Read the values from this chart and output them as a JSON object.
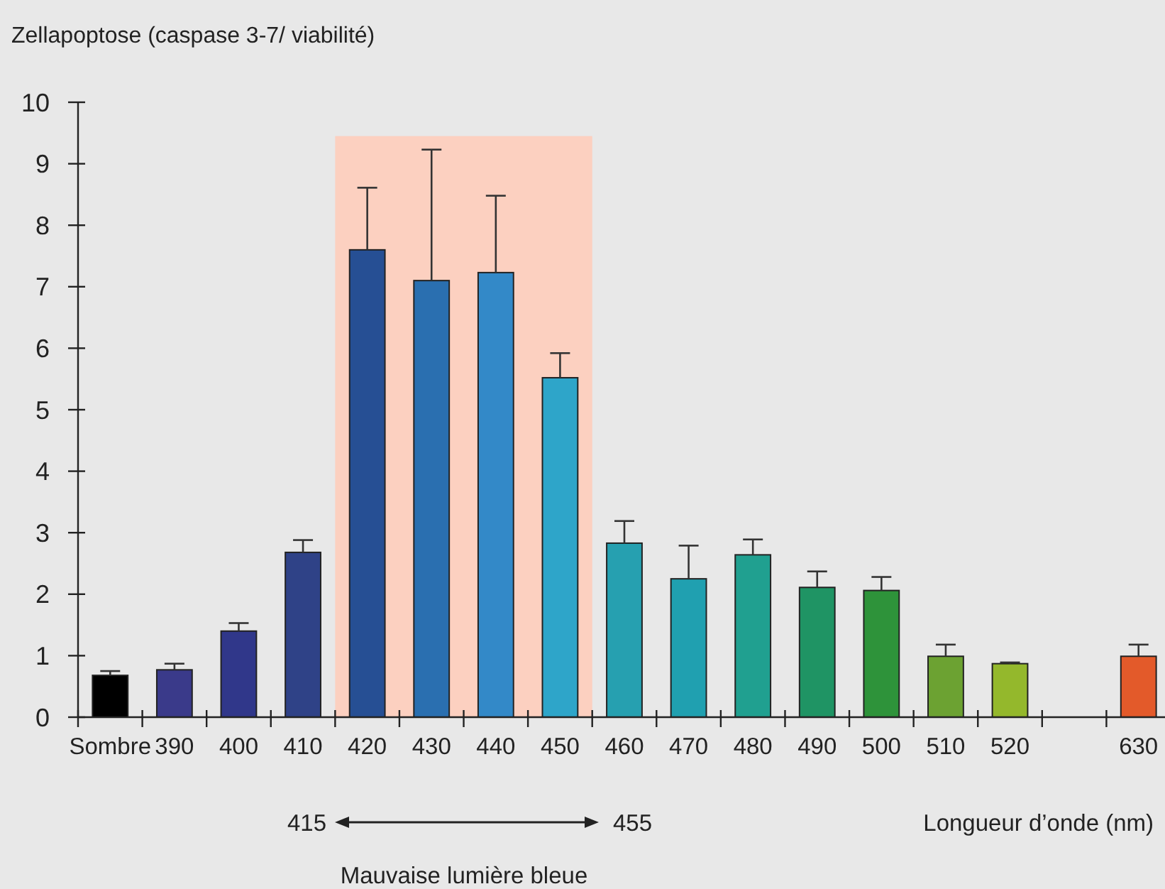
{
  "chart_data": {
    "type": "bar",
    "ylabel": "Zellapoptose (caspase 3-7/ viabilité)",
    "xlabel": "Longueur d’onde (nm)",
    "categories": [
      "Sombre",
      "390",
      "400",
      "410",
      "420",
      "430",
      "440",
      "450",
      "460",
      "470",
      "480",
      "490",
      "500",
      "510",
      "520",
      null,
      "630"
    ],
    "values": [
      0.68,
      0.77,
      1.4,
      2.68,
      7.6,
      7.1,
      7.23,
      5.52,
      2.83,
      2.25,
      2.64,
      2.11,
      2.06,
      0.99,
      0.87,
      null,
      0.99
    ],
    "errors": [
      [
        0.68,
        0.75
      ],
      [
        0.77,
        0.87
      ],
      [
        1.4,
        1.53
      ],
      [
        2.68,
        2.88
      ],
      [
        7.6,
        8.61
      ],
      [
        7.1,
        9.23
      ],
      [
        7.23,
        8.48
      ],
      [
        5.52,
        5.92
      ],
      [
        2.83,
        3.19
      ],
      [
        2.25,
        2.79
      ],
      [
        2.64,
        2.89
      ],
      [
        2.11,
        2.37
      ],
      [
        2.06,
        2.28
      ],
      [
        0.99,
        1.18
      ],
      [
        0.87,
        0.89
      ],
      null,
      [
        0.99,
        1.18
      ]
    ],
    "colors": [
      "#000000",
      "#3a3a8a",
      "#30378a",
      "#2f4287",
      "#264f94",
      "#2a6fb0",
      "#3389c8",
      "#2ea5c9",
      "#26a0b0",
      "#20a0b0",
      "#20a090",
      "#1f9464",
      "#2e933a",
      "#6ca232",
      "#94b82c",
      null,
      "#e35a2a"
    ],
    "ylim": [
      0,
      10
    ],
    "yticks": [
      0,
      1,
      2,
      3,
      4,
      5,
      6,
      7,
      8,
      9,
      10
    ],
    "grid": false,
    "bands": [
      {
        "axis": "x",
        "from": "420",
        "to": "450",
        "color": "#fcd0c0"
      }
    ],
    "annotations": [
      "415",
      "455",
      "Mauvaise lumière bleue"
    ]
  }
}
